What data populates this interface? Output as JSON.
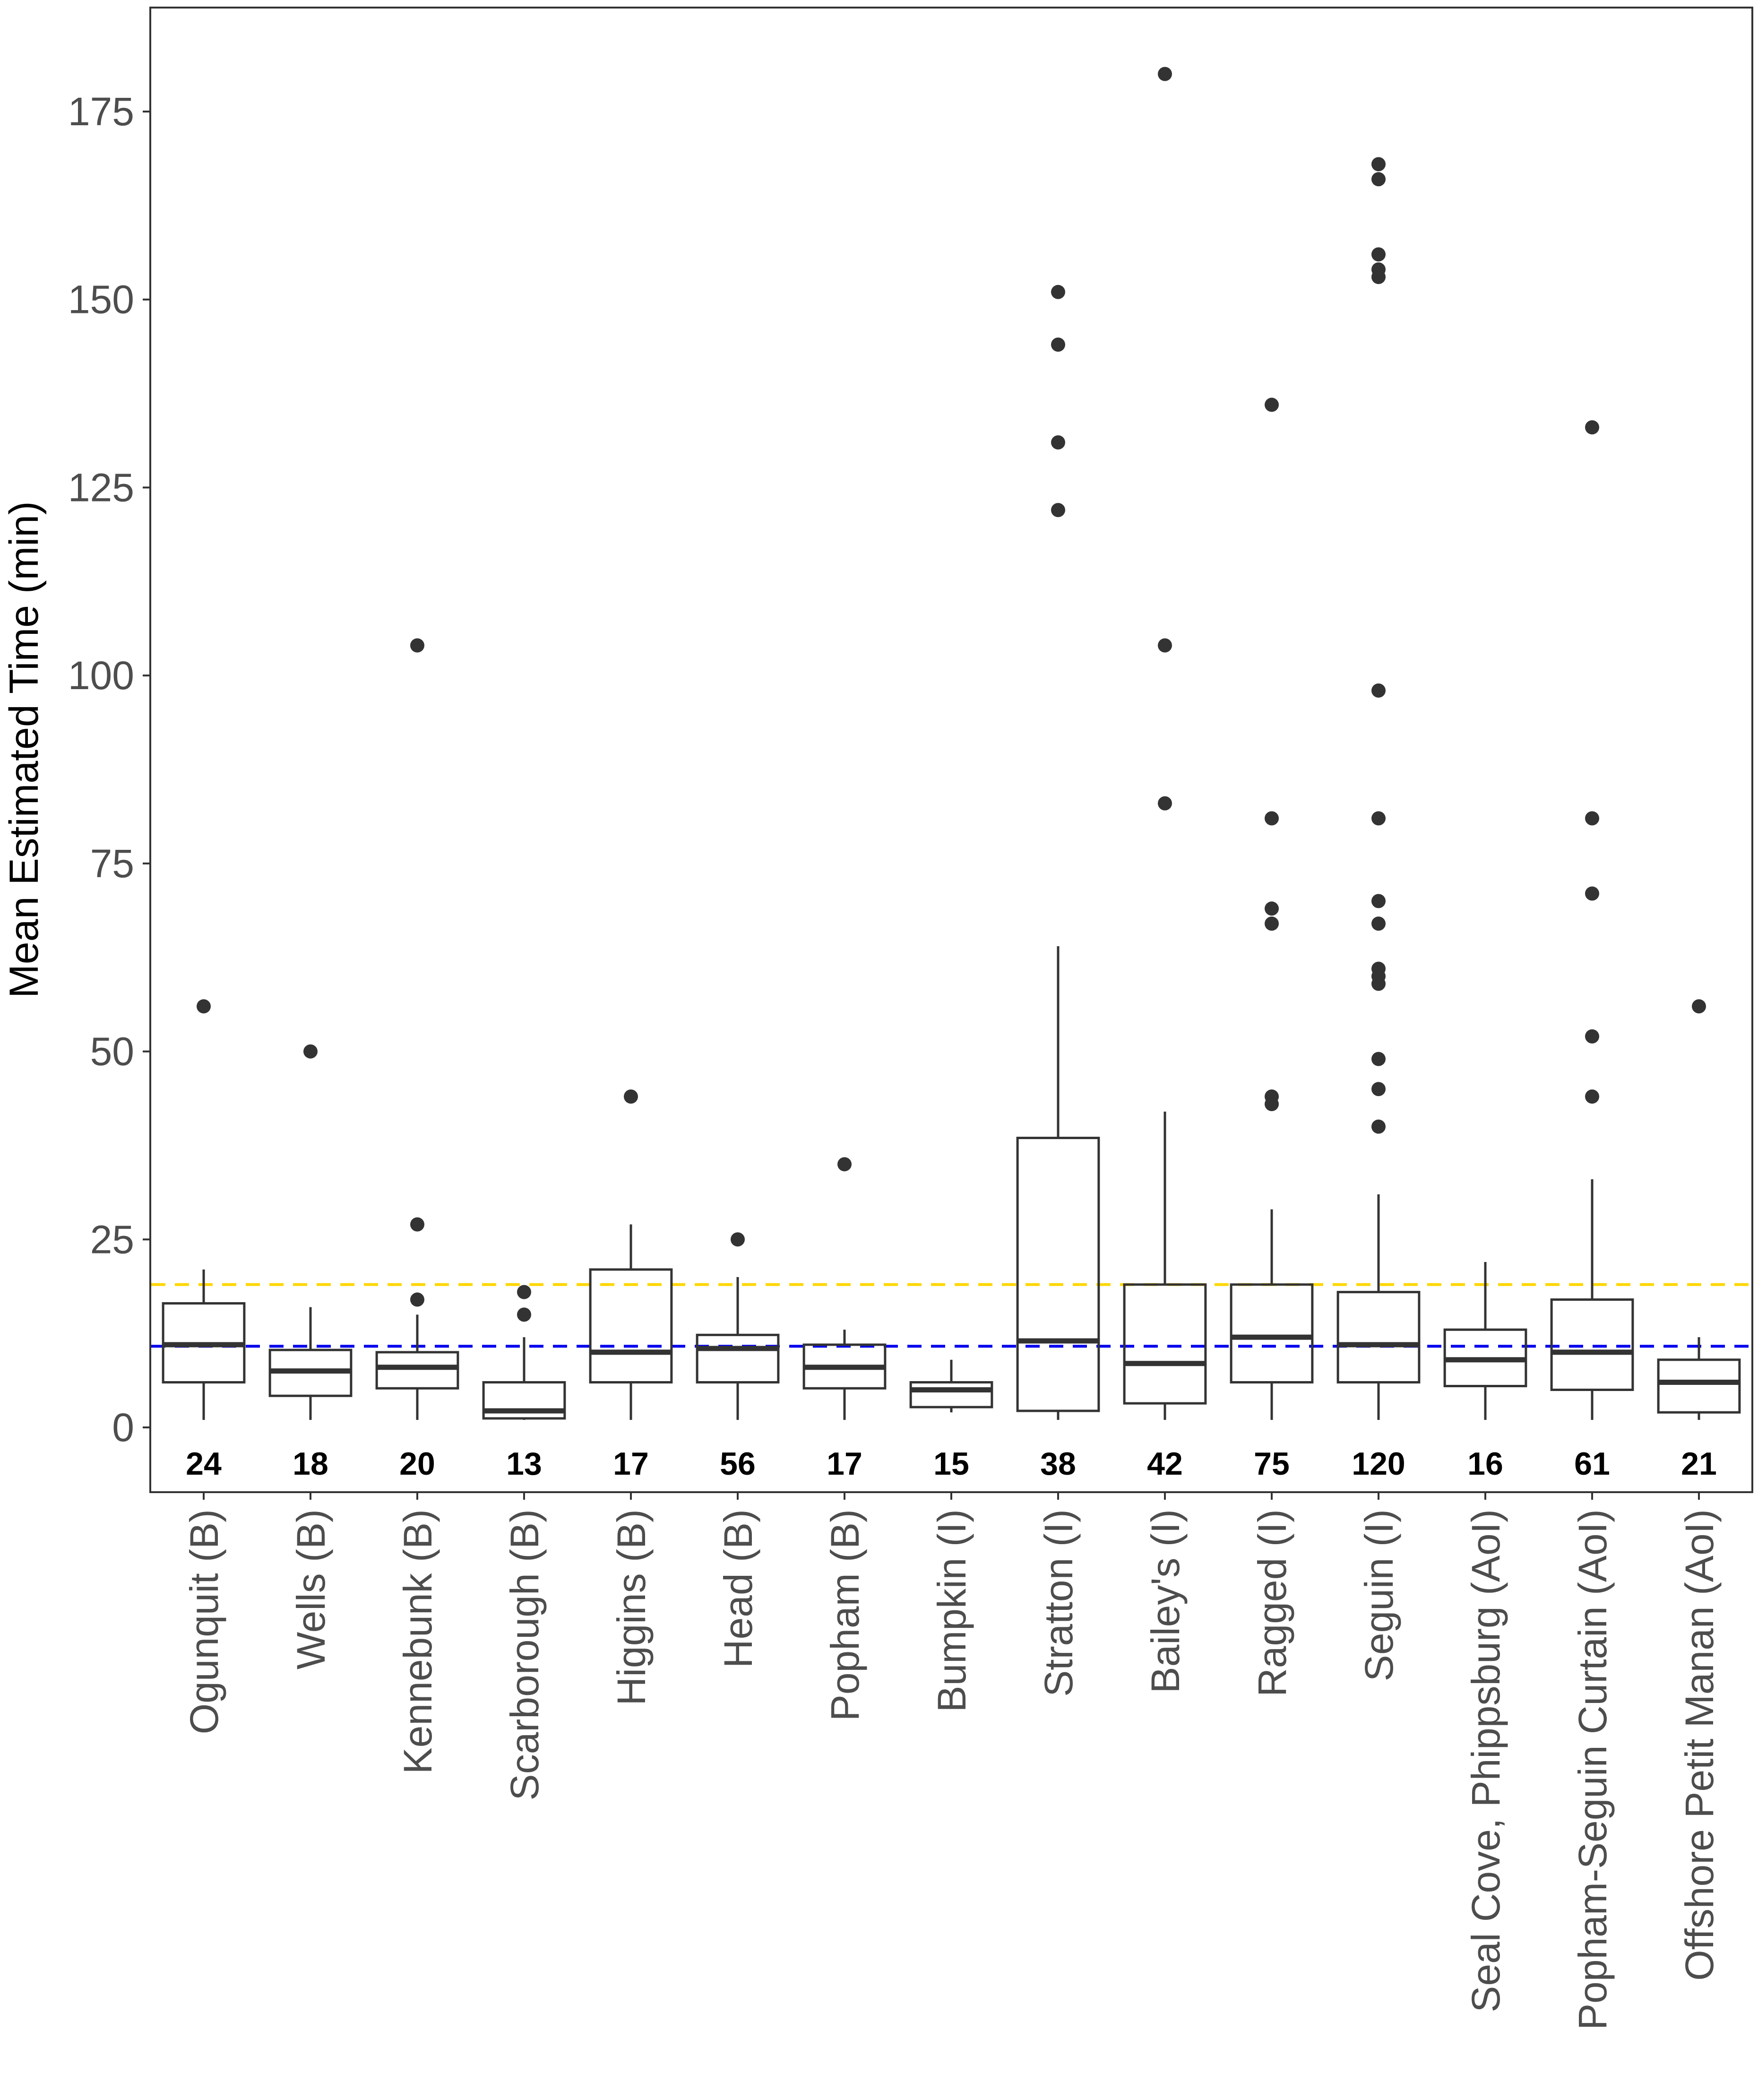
{
  "chart_data": {
    "type": "boxplot",
    "title": "",
    "xlabel": "",
    "ylabel": "Mean Estimated Time (min)",
    "ylim": [
      -8,
      193
    ],
    "yticks": [
      0,
      25,
      50,
      75,
      100,
      125,
      150,
      175
    ],
    "ytick_labels": [
      "0",
      "25",
      "50",
      "75",
      "100",
      "125",
      "150",
      "175"
    ],
    "grid": false,
    "reference_lines": [
      {
        "name": "yellow-reference-line",
        "value": 19,
        "color": "#ffd700",
        "style": "dashed"
      },
      {
        "name": "blue-reference-line",
        "value": 10.8,
        "color": "#0000ee",
        "style": "dashed"
      }
    ],
    "colors": {
      "box": "#333333",
      "outlier": "#333333",
      "frame": "#333333"
    },
    "categories": [
      "Ogunquit (B)",
      "Wells (B)",
      "Kennebunk (B)",
      "Scarborough (B)",
      "Higgins (B)",
      "Head (B)",
      "Popham (B)",
      "Bumpkin (I)",
      "Stratton (I)",
      "Bailey's (I)",
      "Ragged (I)",
      "Seguin (I)",
      "Seal Cove, Phippsburg (AoI)",
      "Popham-Seguin Curtain (AoI)",
      "Offshore Petit Manan (AoI)"
    ],
    "counts": [
      "24",
      "18",
      "20",
      "13",
      "17",
      "56",
      "17",
      "15",
      "38",
      "42",
      "75",
      "120",
      "16",
      "61",
      "21"
    ],
    "boxes": [
      {
        "whisker_low": 1,
        "q1": 6,
        "median": 11,
        "q3": 16.5,
        "whisker_high": 21,
        "outliers": [
          56
        ]
      },
      {
        "whisker_low": 1,
        "q1": 4.2,
        "median": 7.5,
        "q3": 10.3,
        "whisker_high": 16,
        "outliers": [
          50
        ]
      },
      {
        "whisker_low": 1,
        "q1": 5.2,
        "median": 8,
        "q3": 10,
        "whisker_high": 15,
        "outliers": [
          17,
          27,
          104
        ]
      },
      {
        "whisker_low": 1,
        "q1": 1.2,
        "median": 2.2,
        "q3": 6,
        "whisker_high": 12,
        "outliers": [
          15,
          18
        ]
      },
      {
        "whisker_low": 1,
        "q1": 6,
        "median": 10,
        "q3": 21,
        "whisker_high": 27,
        "outliers": [
          44
        ]
      },
      {
        "whisker_low": 1,
        "q1": 6,
        "median": 10.5,
        "q3": 12.3,
        "whisker_high": 20,
        "outliers": [
          25
        ]
      },
      {
        "whisker_low": 1,
        "q1": 5.2,
        "median": 8,
        "q3": 11,
        "whisker_high": 13,
        "outliers": [
          35
        ]
      },
      {
        "whisker_low": 2,
        "q1": 2.7,
        "median": 5,
        "q3": 6,
        "whisker_high": 9,
        "outliers": []
      },
      {
        "whisker_low": 1,
        "q1": 2.2,
        "median": 11.5,
        "q3": 38.5,
        "whisker_high": 64,
        "outliers": [
          122,
          131,
          144,
          151
        ]
      },
      {
        "whisker_low": 1,
        "q1": 3.2,
        "median": 8.5,
        "q3": 19,
        "whisker_high": 42,
        "outliers": [
          83,
          104,
          180
        ]
      },
      {
        "whisker_low": 1,
        "q1": 6,
        "median": 12,
        "q3": 19,
        "whisker_high": 29,
        "outliers": [
          43,
          44,
          67,
          69,
          81,
          136
        ]
      },
      {
        "whisker_low": 1,
        "q1": 6,
        "median": 11,
        "q3": 18,
        "whisker_high": 31,
        "outliers": [
          40,
          45,
          49,
          59,
          60,
          61,
          67,
          70,
          81,
          98,
          153,
          154,
          156,
          166,
          168
        ]
      },
      {
        "whisker_low": 1,
        "q1": 5.5,
        "median": 9,
        "q3": 13,
        "whisker_high": 22,
        "outliers": []
      },
      {
        "whisker_low": 1,
        "q1": 5,
        "median": 10,
        "q3": 17,
        "whisker_high": 33,
        "outliers": [
          44,
          52,
          71,
          81,
          133
        ]
      },
      {
        "whisker_low": 1,
        "q1": 2,
        "median": 6,
        "q3": 9,
        "whisker_high": 12,
        "outliers": [
          56
        ]
      }
    ]
  }
}
